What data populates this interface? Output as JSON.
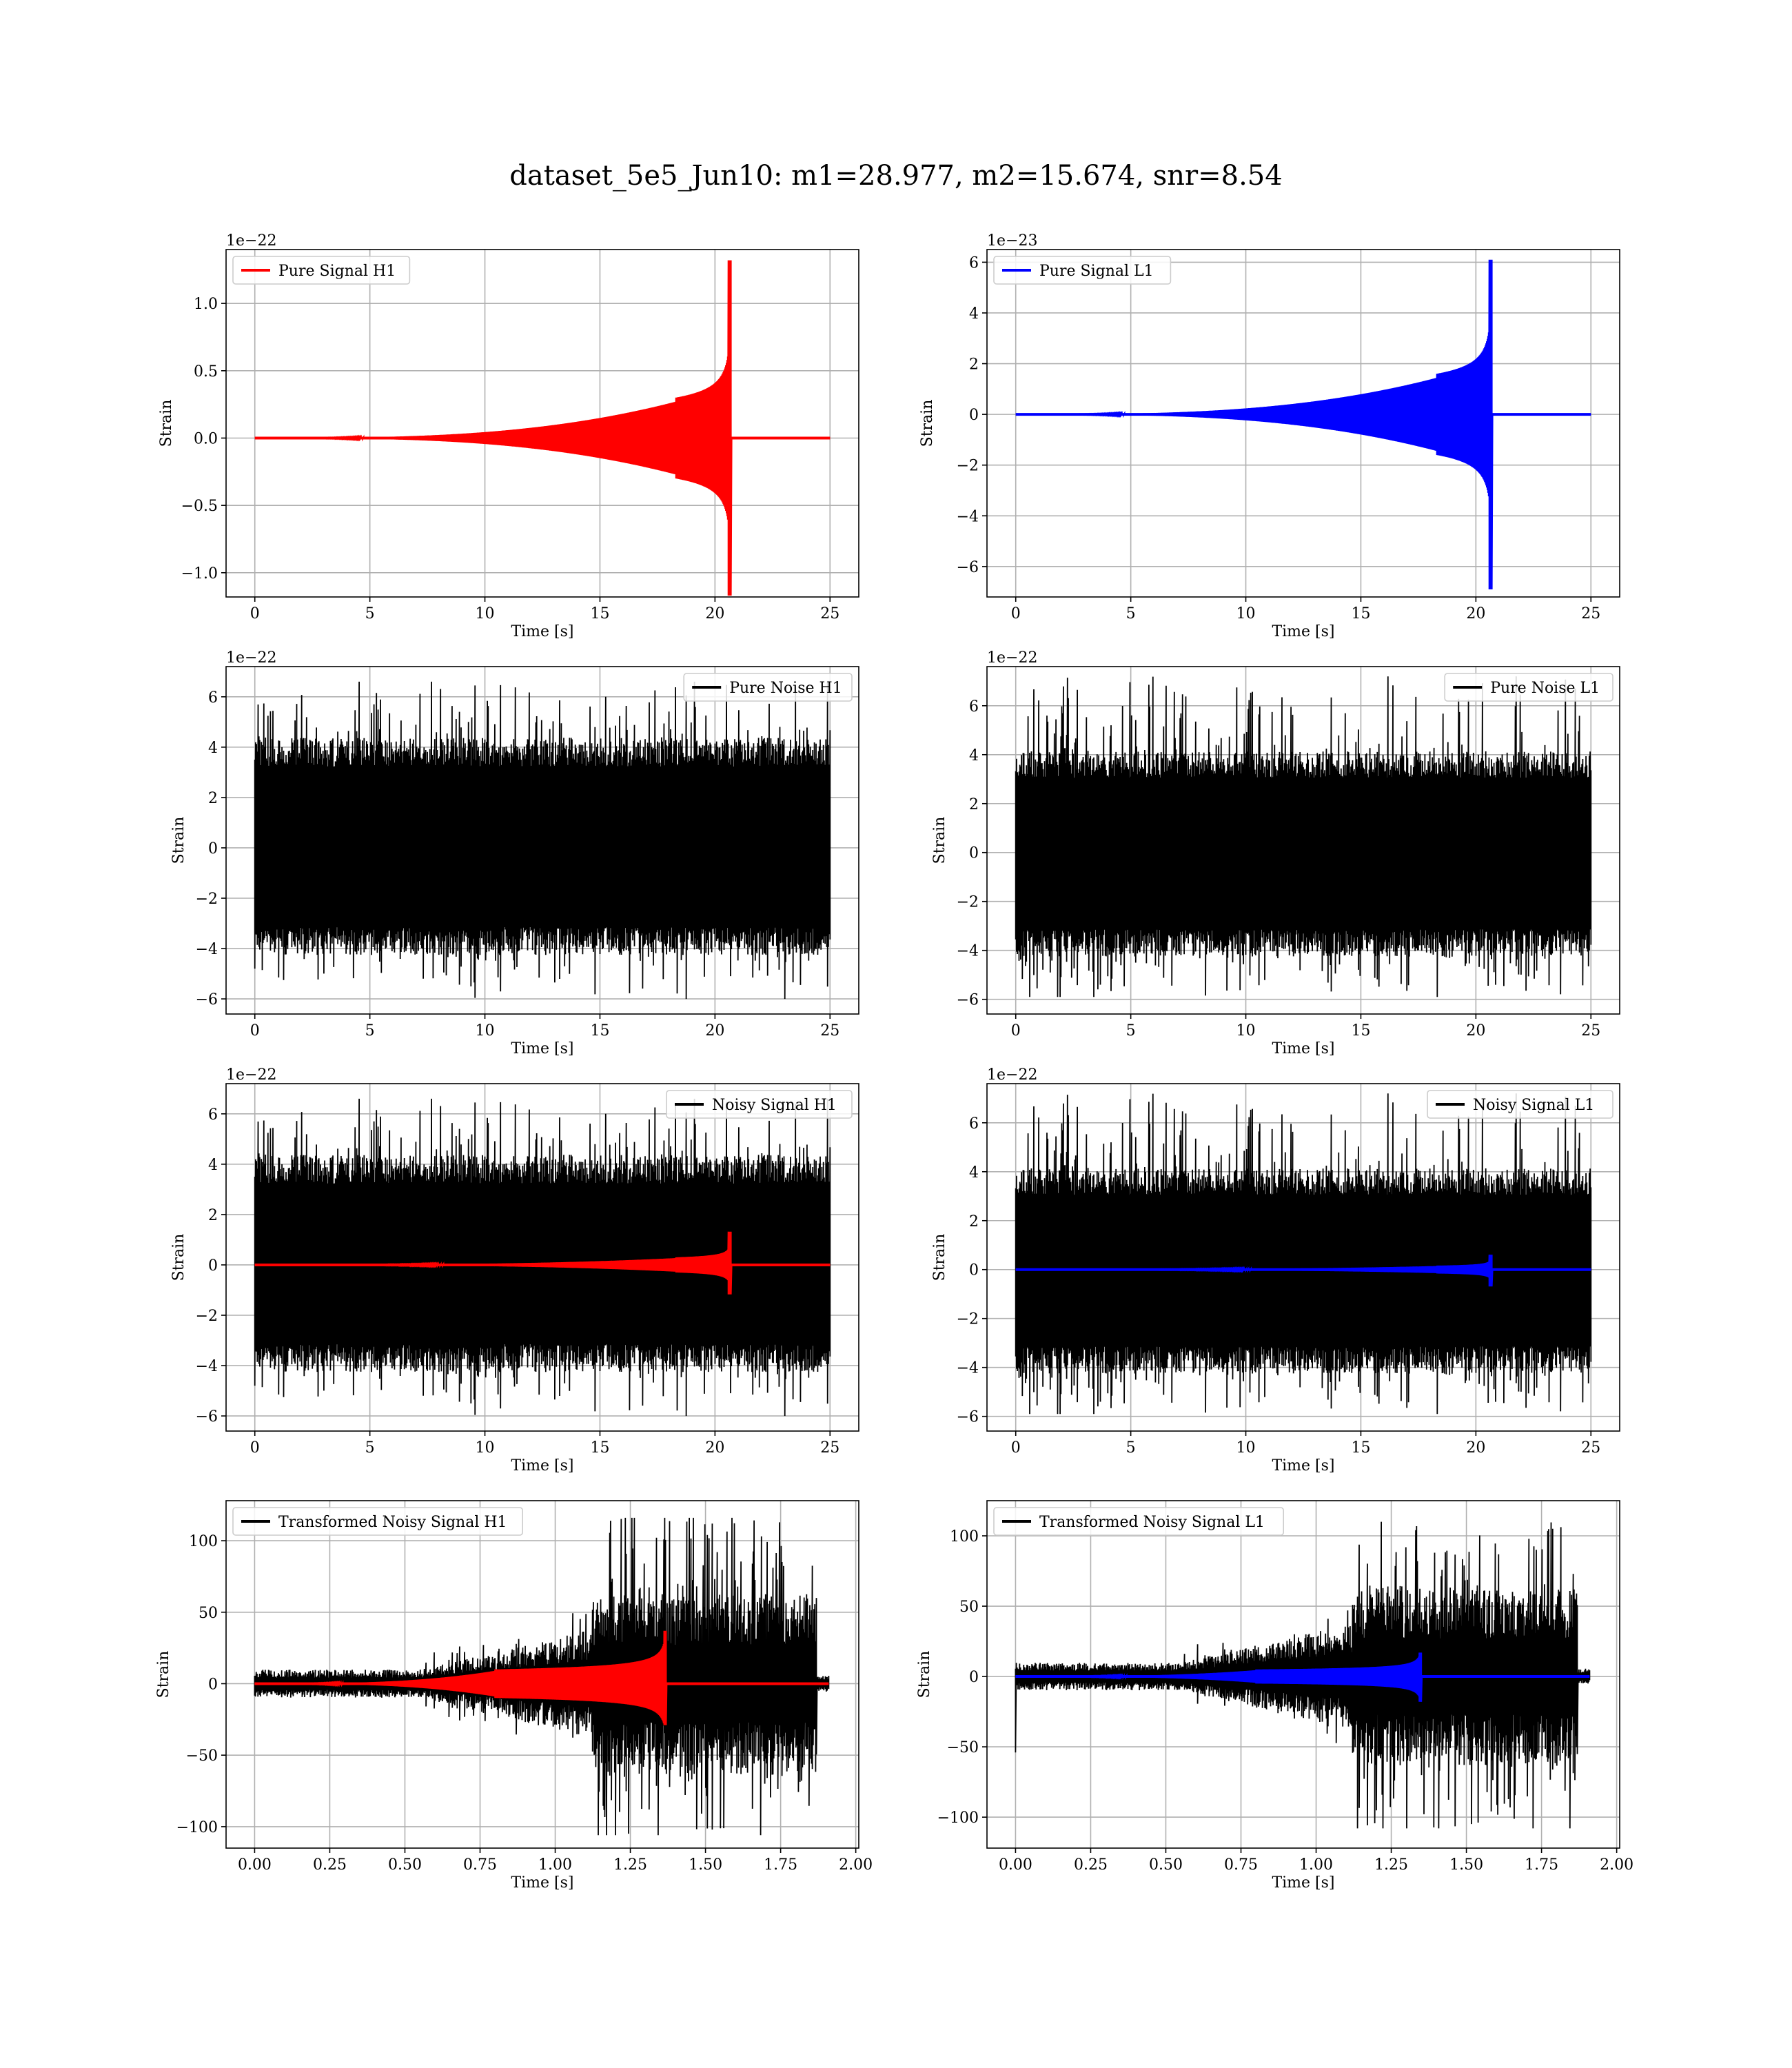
{
  "figure_title": "dataset_5e5_Jun10: m1=28.977, m2=15.674, snr=8.54",
  "colors": {
    "h1_signal": "#ff0000",
    "l1_signal": "#0000ff",
    "noise": "#000000",
    "grid": "#b0b0b0"
  },
  "chart_data": [
    {
      "type": "line",
      "panel": "pure-signal-h1",
      "xlabel": "Time [s]",
      "ylabel": "Strain",
      "offset_text": "1e−22",
      "xlim": [
        -1.25,
        26.25
      ],
      "ylim": [
        -1.18,
        1.4
      ],
      "xticks": [
        0,
        5,
        10,
        15,
        20,
        25
      ],
      "xtick_labels": [
        "0",
        "5",
        "10",
        "15",
        "20",
        "25"
      ],
      "yticks": [
        -1.0,
        -0.5,
        0.0,
        0.5,
        1.0
      ],
      "ytick_labels": [
        "−1.0",
        "−0.5",
        "0.0",
        "0.5",
        "1.0"
      ],
      "legend_loc": "upper left",
      "series": [
        {
          "name": "Pure Signal H1",
          "kind": "chirp",
          "color": "#ff0000",
          "x_start": 0,
          "x_end": 25,
          "merger_time": 20.7,
          "peak_pos": 1.32,
          "peak_neg": -1.17,
          "plateau_amp": 0.3,
          "plateau_start": 18.3,
          "in_legend": true
        }
      ]
    },
    {
      "type": "line",
      "panel": "pure-signal-l1",
      "xlabel": "Time [s]",
      "ylabel": "Strain",
      "offset_text": "1e−23",
      "xlim": [
        -1.25,
        26.25
      ],
      "ylim": [
        -7.2,
        6.5
      ],
      "xticks": [
        0,
        5,
        10,
        15,
        20,
        25
      ],
      "xtick_labels": [
        "0",
        "5",
        "10",
        "15",
        "20",
        "25"
      ],
      "yticks": [
        -6,
        -4,
        -2,
        0,
        2,
        4,
        6
      ],
      "ytick_labels": [
        "−6",
        "−4",
        "−2",
        "0",
        "2",
        "4",
        "6"
      ],
      "legend_loc": "upper left",
      "series": [
        {
          "name": "Pure Signal L1",
          "kind": "chirp",
          "color": "#0000ff",
          "x_start": 0,
          "x_end": 25,
          "merger_time": 20.7,
          "peak_pos": 6.1,
          "peak_neg": -6.9,
          "plateau_amp": 1.6,
          "plateau_start": 18.3,
          "in_legend": true
        }
      ]
    },
    {
      "type": "line",
      "panel": "pure-noise-h1",
      "xlabel": "Time [s]",
      "ylabel": "Strain",
      "offset_text": "1e−22",
      "xlim": [
        -1.25,
        26.25
      ],
      "ylim": [
        -6.6,
        7.2
      ],
      "xticks": [
        0,
        5,
        10,
        15,
        20,
        25
      ],
      "xtick_labels": [
        "0",
        "5",
        "10",
        "15",
        "20",
        "25"
      ],
      "yticks": [
        -6,
        -4,
        -2,
        0,
        2,
        4,
        6
      ],
      "ytick_labels": [
        "−6",
        "−4",
        "−2",
        "0",
        "2",
        "4",
        "6"
      ],
      "legend_loc": "upper right",
      "series": [
        {
          "name": "Pure Noise H1",
          "kind": "noise",
          "color": "#000000",
          "x_start": 0,
          "x_end": 25,
          "band_hi": 3.8,
          "band_lo": -3.7,
          "max": 6.6,
          "min": -6.0,
          "seed": 11,
          "in_legend": true
        }
      ]
    },
    {
      "type": "line",
      "panel": "pure-noise-l1",
      "xlabel": "Time [s]",
      "ylabel": "Strain",
      "offset_text": "1e−22",
      "xlim": [
        -1.25,
        26.25
      ],
      "ylim": [
        -6.6,
        7.6
      ],
      "xticks": [
        0,
        5,
        10,
        15,
        20,
        25
      ],
      "xtick_labels": [
        "0",
        "5",
        "10",
        "15",
        "20",
        "25"
      ],
      "yticks": [
        -6,
        -4,
        -2,
        0,
        2,
        4,
        6
      ],
      "ytick_labels": [
        "−6",
        "−4",
        "−2",
        "0",
        "2",
        "4",
        "6"
      ],
      "legend_loc": "upper right",
      "series": [
        {
          "name": "Pure Noise L1",
          "kind": "noise",
          "color": "#000000",
          "x_start": 0,
          "x_end": 25,
          "band_hi": 3.6,
          "band_lo": -3.7,
          "max": 7.2,
          "min": -5.9,
          "seed": 23,
          "in_legend": true
        }
      ]
    },
    {
      "type": "line",
      "panel": "noisy-signal-h1",
      "xlabel": "Time [s]",
      "ylabel": "Strain",
      "offset_text": "1e−22",
      "xlim": [
        -1.25,
        26.25
      ],
      "ylim": [
        -6.6,
        7.2
      ],
      "xticks": [
        0,
        5,
        10,
        15,
        20,
        25
      ],
      "xtick_labels": [
        "0",
        "5",
        "10",
        "15",
        "20",
        "25"
      ],
      "yticks": [
        -6,
        -4,
        -2,
        0,
        2,
        4,
        6
      ],
      "ytick_labels": [
        "−6",
        "−4",
        "−2",
        "0",
        "2",
        "4",
        "6"
      ],
      "legend_loc": "upper right",
      "series": [
        {
          "name": "Noisy Signal H1",
          "kind": "noise",
          "color": "#000000",
          "x_start": 0,
          "x_end": 25,
          "band_hi": 3.8,
          "band_lo": -3.7,
          "max": 6.6,
          "min": -6.0,
          "seed": 11,
          "in_legend": true
        },
        {
          "name": "",
          "kind": "chirp",
          "color": "#ff0000",
          "x_start": 0,
          "x_end": 25,
          "merger_time": 20.7,
          "peak_pos": 1.32,
          "peak_neg": -1.17,
          "plateau_amp": 0.3,
          "plateau_start": 18.3,
          "in_legend": false
        }
      ]
    },
    {
      "type": "line",
      "panel": "noisy-signal-l1",
      "xlabel": "Time [s]",
      "ylabel": "Strain",
      "offset_text": "1e−22",
      "xlim": [
        -1.25,
        26.25
      ],
      "ylim": [
        -6.6,
        7.6
      ],
      "xticks": [
        0,
        5,
        10,
        15,
        20,
        25
      ],
      "xtick_labels": [
        "0",
        "5",
        "10",
        "15",
        "20",
        "25"
      ],
      "yticks": [
        -6,
        -4,
        -2,
        0,
        2,
        4,
        6
      ],
      "ytick_labels": [
        "−6",
        "−4",
        "−2",
        "0",
        "2",
        "4",
        "6"
      ],
      "legend_loc": "upper right",
      "series": [
        {
          "name": "Noisy Signal L1",
          "kind": "noise",
          "color": "#000000",
          "x_start": 0,
          "x_end": 25,
          "band_hi": 3.6,
          "band_lo": -3.7,
          "max": 7.2,
          "min": -5.9,
          "seed": 23,
          "in_legend": true
        },
        {
          "name": "",
          "kind": "chirp",
          "color": "#0000ff",
          "x_start": 0,
          "x_end": 25,
          "merger_time": 20.7,
          "peak_pos": 0.61,
          "peak_neg": -0.69,
          "plateau_amp": 0.16,
          "plateau_start": 18.3,
          "in_legend": false
        }
      ]
    },
    {
      "type": "line",
      "panel": "transformed-noisy-signal-h1",
      "xlabel": "Time [s]",
      "ylabel": "Strain",
      "offset_text": "",
      "xlim": [
        -0.095,
        2.01
      ],
      "ylim": [
        -115,
        128
      ],
      "xticks": [
        0,
        0.25,
        0.5,
        0.75,
        1.0,
        1.25,
        1.5,
        1.75,
        2.0
      ],
      "xtick_labels": [
        "0.00",
        "0.25",
        "0.50",
        "0.75",
        "1.00",
        "1.25",
        "1.50",
        "1.75",
        "2.00"
      ],
      "yticks": [
        -100,
        -50,
        0,
        50,
        100
      ],
      "ytick_labels": [
        "−100",
        "−50",
        "0",
        "50",
        "100"
      ],
      "legend_loc": "upper left",
      "series": [
        {
          "name": "Transformed Noisy Signal H1",
          "kind": "whitened",
          "color": "#000000",
          "x_start": 0,
          "x_end": 1.91,
          "growth_start": 0.55,
          "jump_time": 1.12,
          "end_time": 1.87,
          "max": 116,
          "min": -106,
          "seed": 5,
          "in_legend": true
        },
        {
          "name": "",
          "kind": "chirp",
          "color": "#ff0000",
          "x_start": 0,
          "x_end": 1.91,
          "merger_time": 1.37,
          "peak_pos": 37,
          "peak_neg": -29,
          "plateau_amp": 10,
          "plateau_start": 0.8,
          "in_legend": false
        }
      ]
    },
    {
      "type": "line",
      "panel": "transformed-noisy-signal-l1",
      "xlabel": "Time [s]",
      "ylabel": "Strain",
      "offset_text": "",
      "xlim": [
        -0.095,
        2.01
      ],
      "ylim": [
        -122,
        125
      ],
      "xticks": [
        0,
        0.25,
        0.5,
        0.75,
        1.0,
        1.25,
        1.5,
        1.75,
        2.0
      ],
      "xtick_labels": [
        "0.00",
        "0.25",
        "0.50",
        "0.75",
        "1.00",
        "1.25",
        "1.50",
        "1.75",
        "2.00"
      ],
      "yticks": [
        -100,
        -50,
        0,
        50,
        100
      ],
      "ytick_labels": [
        "−100",
        "−50",
        "0",
        "50",
        "100"
      ],
      "legend_loc": "upper left",
      "series": [
        {
          "name": "Transformed Noisy Signal L1",
          "kind": "whitened",
          "color": "#000000",
          "x_start": 0,
          "x_end": 1.91,
          "growth_start": 0.55,
          "jump_time": 1.12,
          "end_time": 1.87,
          "max": 110,
          "min": -108,
          "seed": 9,
          "spike_start": -54,
          "in_legend": true
        },
        {
          "name": "",
          "kind": "chirp",
          "color": "#0000ff",
          "x_start": 0,
          "x_end": 1.91,
          "merger_time": 1.35,
          "peak_pos": 17,
          "peak_neg": -18,
          "plateau_amp": 5,
          "plateau_start": 0.8,
          "in_legend": false
        }
      ]
    }
  ]
}
